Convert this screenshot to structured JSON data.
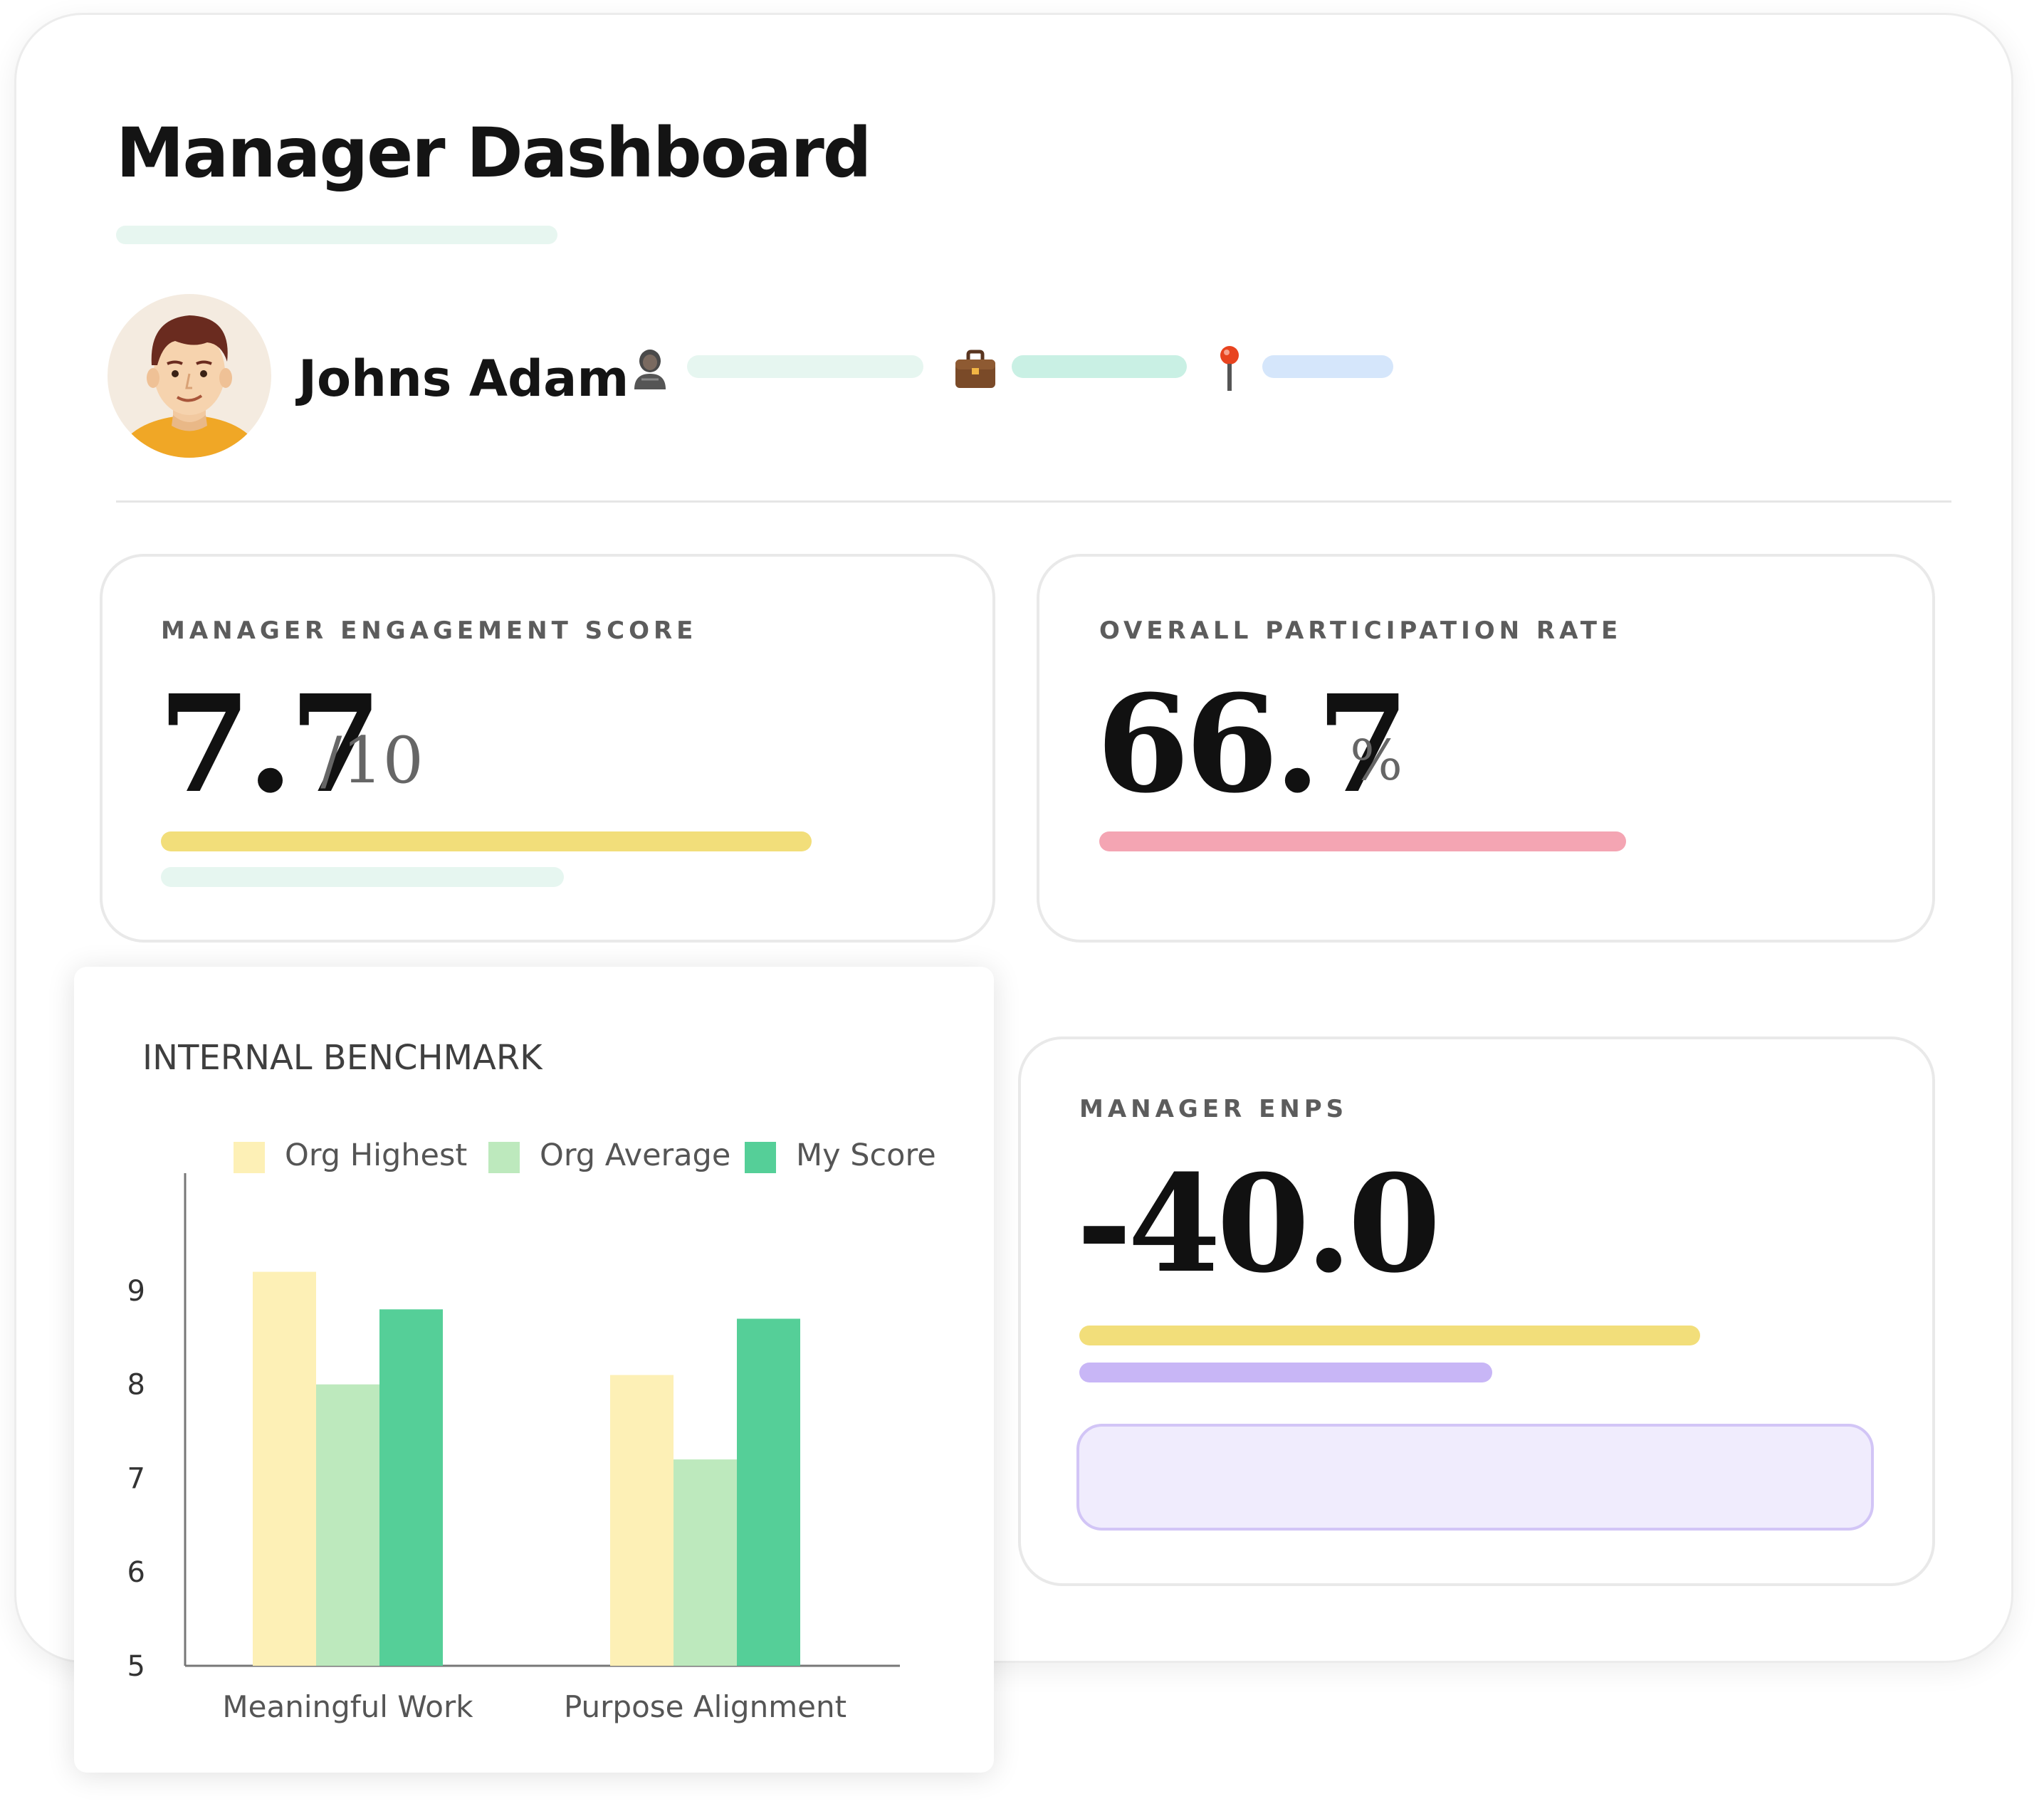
{
  "page": {
    "title": "Manager Dashboard"
  },
  "profile": {
    "name": "Johns Adam",
    "meta": [
      {
        "icon": "person-icon",
        "color": "#e6f6f0"
      },
      {
        "icon": "briefcase-icon",
        "color": "#c9f0e4"
      },
      {
        "icon": "location-pin-icon",
        "color": "#d5e6fb"
      }
    ]
  },
  "engagement": {
    "label": "MANAGER ENGAGEMENT SCORE",
    "value": "7.7",
    "suffix": "/10",
    "bar_color": "#f2de7a",
    "secondary_bar_color": "#e6f6f0"
  },
  "participation": {
    "label": "OVERALL PARTICIPATION RATE",
    "value": "66.7",
    "suffix": "%",
    "bar_color": "#f4a5b3"
  },
  "enps": {
    "label": "MANAGER ENPS",
    "value": "-40.0",
    "bar_colors": [
      "#f2de7a",
      "#c8b6f6"
    ],
    "box_color": "#f0ecfd"
  },
  "chart_data": {
    "type": "bar",
    "title": "INTERNAL BENCHMARK",
    "categories": [
      "Meaningful Work",
      "Purpose Alignment"
    ],
    "series": [
      {
        "name": "Org Highest",
        "color": "#fdf0b6",
        "values": [
          9.2,
          8.1
        ]
      },
      {
        "name": "Org Average",
        "color": "#bde9bd",
        "values": [
          8.0,
          7.2
        ]
      },
      {
        "name": "My Score",
        "color": "#55cf98",
        "values": [
          8.8,
          8.7
        ]
      }
    ],
    "ylim": [
      5,
      10.1
    ],
    "yticks": [
      5,
      6,
      7,
      8,
      9
    ],
    "legend": "top",
    "grid": false
  }
}
